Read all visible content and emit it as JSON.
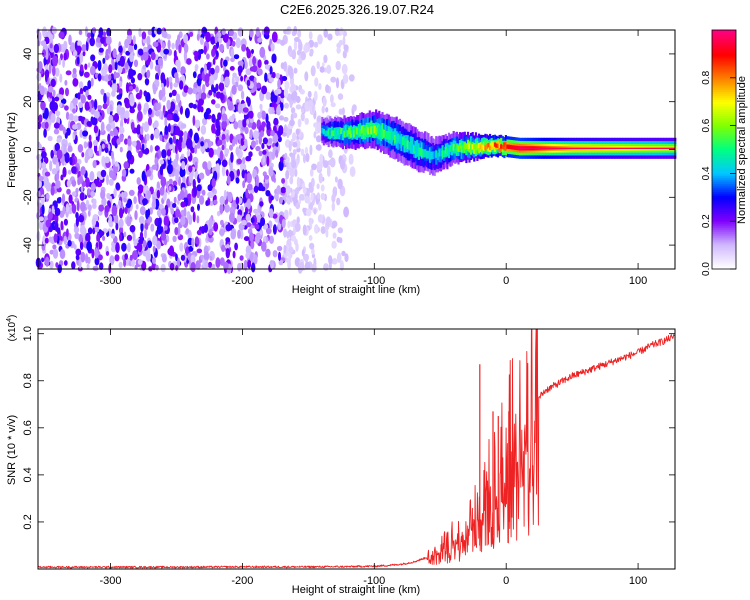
{
  "title": "C2E6.2025.326.19.07.R24",
  "chart_data": [
    {
      "type": "heatmap",
      "id": "spectrogram",
      "xlabel": "Height of straight line (km)",
      "ylabel": "Frequency (Hz)",
      "xlim": [
        -355,
        128
      ],
      "ylim": [
        -50,
        50
      ],
      "xticks": [
        -300,
        -200,
        -100,
        0,
        100
      ],
      "yticks": [
        -40,
        -20,
        0,
        20,
        40
      ],
      "colorbar": {
        "label": "Normalized spectral amplitude",
        "range": [
          0,
          1
        ],
        "ticks": [
          0.0,
          0.2,
          0.4,
          0.6,
          0.8
        ],
        "colors": [
          "#ffffff",
          "#cfb8ff",
          "#7f00ff",
          "#0000ff",
          "#00c8ff",
          "#00ff80",
          "#80ff00",
          "#ffff00",
          "#ff8000",
          "#ff0000",
          "#ff0080"
        ]
      },
      "noise_region": {
        "x_range": [
          -355,
          -115
        ],
        "freq_range": [
          -50,
          50
        ],
        "typical_amplitude": 0.15
      },
      "signal_track": [
        {
          "x": -140,
          "freq": 7.5,
          "amp": 0.45,
          "halfwidth_hz": 2.5
        },
        {
          "x": -120,
          "freq": 7.0,
          "amp": 0.55,
          "halfwidth_hz": 3.0
        },
        {
          "x": -100,
          "freq": 8.5,
          "amp": 0.6,
          "halfwidth_hz": 3.5
        },
        {
          "x": -85,
          "freq": 5.0,
          "amp": 0.5,
          "halfwidth_hz": 4.0
        },
        {
          "x": -70,
          "freq": 0.5,
          "amp": 0.5,
          "halfwidth_hz": 4.0
        },
        {
          "x": -55,
          "freq": -3.0,
          "amp": 0.45,
          "halfwidth_hz": 3.5
        },
        {
          "x": -40,
          "freq": 0.5,
          "amp": 0.55,
          "halfwidth_hz": 3.0
        },
        {
          "x": -25,
          "freq": 1.0,
          "amp": 0.7,
          "halfwidth_hz": 2.5
        },
        {
          "x": -10,
          "freq": 1.5,
          "amp": 0.85,
          "halfwidth_hz": 2.0
        },
        {
          "x": 0,
          "freq": 1.2,
          "amp": 0.9,
          "halfwidth_hz": 2.0
        },
        {
          "x": 10,
          "freq": 0.5,
          "amp": 0.95,
          "halfwidth_hz": 2.0
        },
        {
          "x": 50,
          "freq": 0.5,
          "amp": 0.75,
          "halfwidth_hz": 2.0
        },
        {
          "x": 128,
          "freq": 0.5,
          "amp": 0.65,
          "halfwidth_hz": 2.0
        }
      ]
    },
    {
      "type": "line",
      "id": "snr",
      "xlabel": "Height of straight line (km)",
      "ylabel": "SNR (10 * v/v)",
      "y_scale_label": "(x10",
      "y_scale_exponent": "4",
      "xlim": [
        -355,
        128
      ],
      "ylim": [
        0,
        1.02
      ],
      "xticks": [
        -300,
        -200,
        -100,
        0,
        100
      ],
      "yticks": [
        0.2,
        0.4,
        0.6,
        0.8,
        1.0
      ],
      "y_tick_labels": [
        "0.2",
        "0.4",
        "0.6",
        "0.8",
        "1.0"
      ],
      "color": "#ee2222",
      "series": [
        {
          "name": "SNR",
          "x": [
            -355,
            -300,
            -250,
            -200,
            -150,
            -120,
            -100,
            -90,
            -80,
            -70,
            -60,
            -50,
            -45,
            -40,
            -35,
            -30,
            -25,
            -20,
            -15,
            -10,
            -5,
            0,
            5,
            10,
            15,
            20,
            25,
            30,
            40,
            50,
            60,
            70,
            80,
            90,
            100,
            110,
            120,
            128
          ],
          "y": [
            0.008,
            0.008,
            0.008,
            0.009,
            0.009,
            0.01,
            0.012,
            0.015,
            0.02,
            0.03,
            0.05,
            0.08,
            0.1,
            0.12,
            0.15,
            0.18,
            0.22,
            0.25,
            0.3,
            0.36,
            0.42,
            0.48,
            0.53,
            0.58,
            0.64,
            0.69,
            0.73,
            0.76,
            0.79,
            0.82,
            0.84,
            0.86,
            0.88,
            0.9,
            0.92,
            0.95,
            0.97,
            0.99
          ]
        }
      ],
      "spikes": [
        {
          "x": -20,
          "y": 0.87
        },
        {
          "x": -10,
          "y": 0.67
        },
        {
          "x": -6,
          "y": 0.65
        },
        {
          "x": 2,
          "y": 0.67
        }
      ]
    }
  ]
}
